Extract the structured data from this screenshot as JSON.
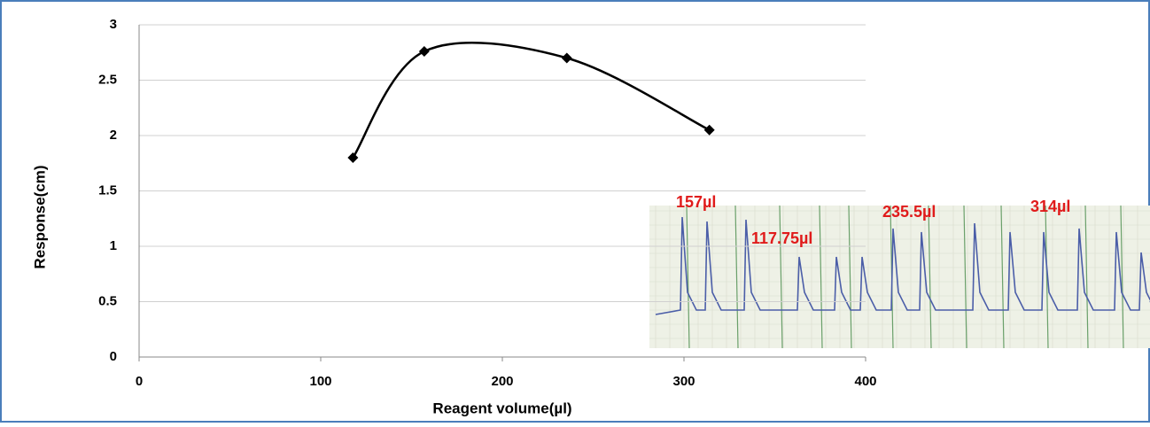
{
  "chart_data": {
    "type": "scatter",
    "x_label": "Reagent volume(µl)",
    "y_label": "Response(cm)",
    "series": [
      {
        "color": "#000000",
        "x": [
          117.75,
          157,
          235.5,
          314
        ],
        "values": [
          1.8,
          2.76,
          2.7,
          2.05
        ]
      }
    ],
    "xlim": [
      0,
      400
    ],
    "xticks": [
      0,
      100,
      200,
      300,
      400
    ],
    "ylim": [
      0,
      3
    ],
    "yticks": [
      0,
      0.5,
      1,
      1.5,
      2,
      2.5,
      3
    ],
    "grid": true,
    "smooth": true,
    "annotations": [
      "157µl",
      "117.75µl",
      "235.5µl",
      "314µl"
    ]
  }
}
